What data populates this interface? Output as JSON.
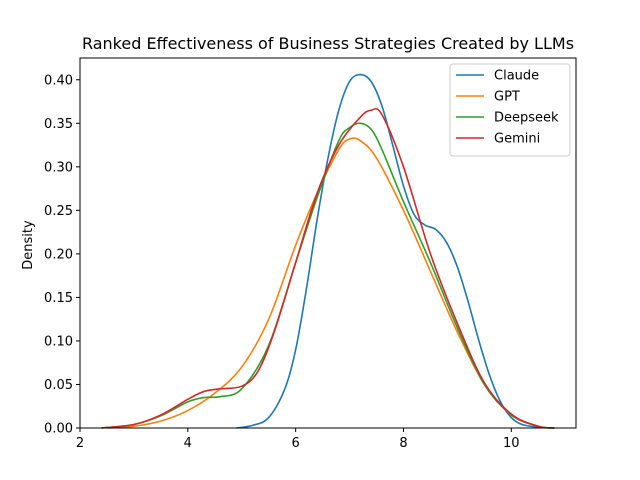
{
  "chart_data": {
    "type": "line",
    "title": "Ranked Effectiveness of Business Strategies Created by LLMs",
    "xlabel": "",
    "ylabel": "Density",
    "xlim": [
      2,
      11.2
    ],
    "ylim": [
      0,
      0.425
    ],
    "xticks": [
      2,
      4,
      6,
      8,
      10
    ],
    "xtick_labels": [
      "2",
      "4",
      "6",
      "8",
      "10"
    ],
    "yticks": [
      0,
      0.05,
      0.1,
      0.15,
      0.2,
      0.25,
      0.3,
      0.35,
      0.4
    ],
    "ytick_labels": [
      "0.00",
      "0.05",
      "0.10",
      "0.15",
      "0.20",
      "0.25",
      "0.30",
      "0.35",
      "0.40"
    ],
    "grid": false,
    "legend_position": "top-right",
    "series": [
      {
        "name": "Claude",
        "color": "#1f77b4",
        "points": [
          [
            4.9,
            0
          ],
          [
            5.2,
            0.003
          ],
          [
            5.5,
            0.012
          ],
          [
            5.8,
            0.045
          ],
          [
            6.0,
            0.09
          ],
          [
            6.2,
            0.16
          ],
          [
            6.4,
            0.24
          ],
          [
            6.6,
            0.31
          ],
          [
            6.8,
            0.365
          ],
          [
            7.0,
            0.398
          ],
          [
            7.2,
            0.406
          ],
          [
            7.4,
            0.398
          ],
          [
            7.6,
            0.37
          ],
          [
            7.8,
            0.325
          ],
          [
            8.0,
            0.278
          ],
          [
            8.2,
            0.245
          ],
          [
            8.4,
            0.233
          ],
          [
            8.6,
            0.228
          ],
          [
            8.8,
            0.213
          ],
          [
            9.0,
            0.185
          ],
          [
            9.2,
            0.145
          ],
          [
            9.4,
            0.1
          ],
          [
            9.6,
            0.06
          ],
          [
            9.8,
            0.03
          ],
          [
            10.0,
            0.012
          ],
          [
            10.2,
            0.004
          ],
          [
            10.5,
            0.001
          ],
          [
            10.8,
            0
          ]
        ]
      },
      {
        "name": "GPT",
        "color": "#ff7f0e",
        "points": [
          [
            2.5,
            0
          ],
          [
            3.0,
            0.002
          ],
          [
            3.5,
            0.008
          ],
          [
            4.0,
            0.02
          ],
          [
            4.5,
            0.04
          ],
          [
            5.0,
            0.07
          ],
          [
            5.5,
            0.125
          ],
          [
            6.0,
            0.21
          ],
          [
            6.4,
            0.27
          ],
          [
            6.8,
            0.32
          ],
          [
            7.0,
            0.332
          ],
          [
            7.2,
            0.33
          ],
          [
            7.5,
            0.31
          ],
          [
            8.0,
            0.25
          ],
          [
            8.5,
            0.18
          ],
          [
            9.0,
            0.11
          ],
          [
            9.5,
            0.05
          ],
          [
            10.0,
            0.015
          ],
          [
            10.5,
            0.002
          ],
          [
            10.8,
            0
          ]
        ]
      },
      {
        "name": "Deepseek",
        "color": "#2ca02c",
        "points": [
          [
            2.4,
            0
          ],
          [
            3.0,
            0.004
          ],
          [
            3.5,
            0.014
          ],
          [
            4.0,
            0.03
          ],
          [
            4.3,
            0.035
          ],
          [
            4.6,
            0.036
          ],
          [
            5.0,
            0.045
          ],
          [
            5.5,
            0.095
          ],
          [
            6.0,
            0.19
          ],
          [
            6.4,
            0.265
          ],
          [
            6.8,
            0.33
          ],
          [
            7.0,
            0.345
          ],
          [
            7.2,
            0.35
          ],
          [
            7.4,
            0.343
          ],
          [
            7.6,
            0.32
          ],
          [
            8.0,
            0.26
          ],
          [
            8.5,
            0.19
          ],
          [
            9.0,
            0.115
          ],
          [
            9.5,
            0.05
          ],
          [
            10.0,
            0.015
          ],
          [
            10.5,
            0.002
          ],
          [
            10.8,
            0
          ]
        ]
      },
      {
        "name": "Gemini",
        "color": "#d62728",
        "points": [
          [
            2.4,
            0
          ],
          [
            3.0,
            0.004
          ],
          [
            3.5,
            0.015
          ],
          [
            4.0,
            0.033
          ],
          [
            4.3,
            0.042
          ],
          [
            4.6,
            0.045
          ],
          [
            5.0,
            0.048
          ],
          [
            5.3,
            0.065
          ],
          [
            5.6,
            0.11
          ],
          [
            6.0,
            0.19
          ],
          [
            6.4,
            0.27
          ],
          [
            6.8,
            0.325
          ],
          [
            7.2,
            0.357
          ],
          [
            7.4,
            0.365
          ],
          [
            7.6,
            0.36
          ],
          [
            8.0,
            0.3
          ],
          [
            8.5,
            0.2
          ],
          [
            9.0,
            0.12
          ],
          [
            9.5,
            0.052
          ],
          [
            10.0,
            0.016
          ],
          [
            10.5,
            0.002
          ],
          [
            10.8,
            0
          ]
        ]
      }
    ]
  }
}
